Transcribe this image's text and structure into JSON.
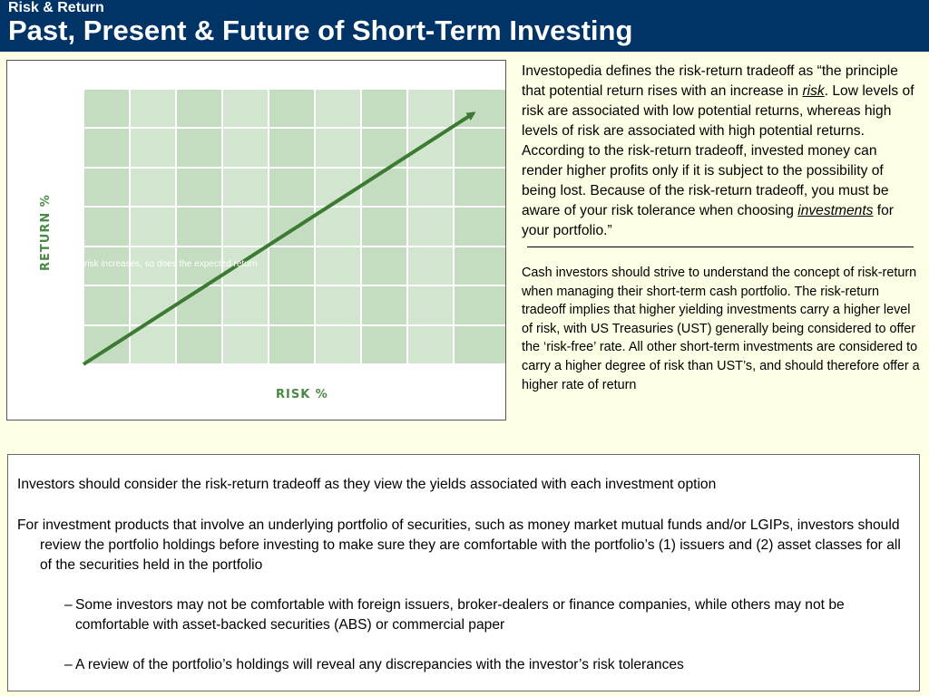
{
  "header": {
    "kicker": "Risk & Return",
    "title": "Past, Present & Future of Short-Term Investing"
  },
  "figure": {
    "xlabel": "RISK %",
    "ylabel": "RETURN %",
    "caption": "risk increases, so does the expected return",
    "colors": {
      "plot": "#c4dcc0",
      "plot_light": "#d8ead5",
      "line": "#3d7a34",
      "label": "#4a8a45"
    }
  },
  "quote": {
    "part1": "Investopedia defines the risk-return tradeoff as “the principle that potential return rises with an increase in ",
    "link1": "risk",
    "part2": ".  Low levels of risk are associated with low potential returns, whereas high levels of risk are associated with high potential returns.  According to the risk-return tradeoff, invested money can render higher profits only if it is subject to the possibility of being lost.  Because of the risk-return tradeoff, you must be aware of your risk tolerance when choosing ",
    "link2": "investments",
    "part3": " for your portfolio.”"
  },
  "note": "Cash investors should strive to understand the concept of risk-return when managing their short-term cash portfolio. The risk-return tradeoff implies that higher yielding investments carry a higher level of risk, with US Treasuries (UST) generally being considered to offer the ‘risk-free’ rate.  All other short-term investments are considered to carry a higher degree of risk than UST’s, and should therefore offer a higher rate of return",
  "bullets": {
    "b1": "Investors should consider the risk-return tradeoff as they view the yields associated with each investment  option",
    "b2": "For investment products that involve an underlying portfolio of securities, such as money market mutual funds and/or LGIPs, investors should review the portfolio holdings before investing to make sure they are comfortable with the portfolio’s (1) issuers and (2) asset classes for all of the securities held in the portfolio",
    "dash": "–",
    "s1": "Some investors may not be comfortable with foreign issuers, broker-dealers or finance companies, while others may not be comfortable with asset-backed securities (ABS) or commercial paper",
    "s2": "A review of the portfolio’s holdings will reveal any discrepancies with the investor’s risk tolerances"
  }
}
